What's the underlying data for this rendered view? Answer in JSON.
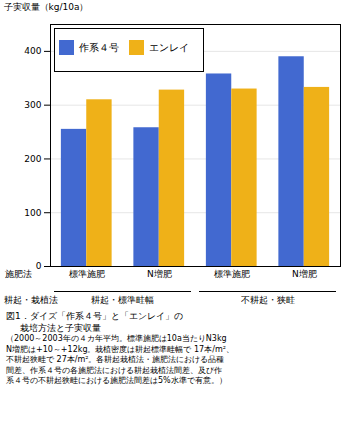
{
  "chart_data": {
    "type": "bar",
    "title": "図1．ダイズ「作系４号」と「エンレイ」の",
    "subtitle": "     栽培方法と子実収量",
    "ylabel": "子実収量（kg/10a）",
    "xlabel": "施肥法",
    "categories": [
      "標準施肥",
      "N増肥",
      "標準施肥",
      "N増肥"
    ],
    "series": [
      {
        "name": "作系４号",
        "values": [
          255,
          258,
          358,
          390
        ]
      },
      {
        "name": "エンレイ",
        "values": [
          310,
          328,
          330,
          333
        ]
      }
    ],
    "ylim": [
      0,
      450
    ],
    "yticks": [
      0,
      100,
      200,
      300,
      400
    ],
    "grid": true,
    "legend": "upper left",
    "annotations": [
      "耕起・栽植法",
      "耕起・標準畦幅",
      "不耕起・狭畦"
    ],
    "caption": [
      "（2000～2003年の４カ年平均。標準施肥は10a当たりN3kg",
      "N増肥は+10～+12kg。栽植密度は耕起標準畦幅で 17本/m²、",
      "不耕起狭畦で 27本/m²。各耕起栽植法・施肥法における品種",
      "間差、作系４号の各施肥法における耕起栽植法間差、及び作",
      "系４号の不耕起狭畦における施肥法間差は5%水準で有意。）"
    ]
  }
}
